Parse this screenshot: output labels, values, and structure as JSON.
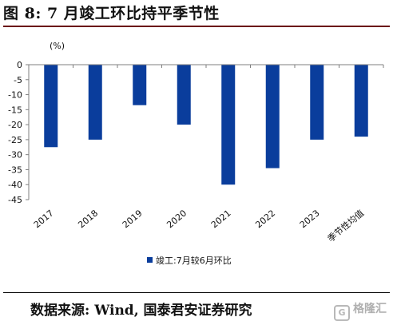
{
  "title": "图 8:  7 月竣工环比持平季节性",
  "source": "数据来源:  Wind, 国泰君安证券研究",
  "watermark": "格隆汇",
  "colors": {
    "bar": "#0a3d9c",
    "axis": "#7f7f7f",
    "title_rule": "#6b0f12"
  },
  "chart_data": {
    "type": "bar",
    "categories": [
      "2017",
      "2018",
      "2019",
      "2020",
      "2021",
      "2022",
      "2023",
      "季节性均值"
    ],
    "series": [
      {
        "name": "竣工:7月较6月环比",
        "values": [
          -27.5,
          -25,
          -13.5,
          -20,
          -40,
          -34.5,
          -25,
          -24
        ]
      }
    ],
    "unit_label": "(%)",
    "ylim": [
      -45,
      0
    ],
    "yticks": [
      0,
      -5,
      -10,
      -15,
      -20,
      -25,
      -30,
      -35,
      -40,
      -45
    ],
    "legend_position": "bottom-left",
    "grid": false
  }
}
